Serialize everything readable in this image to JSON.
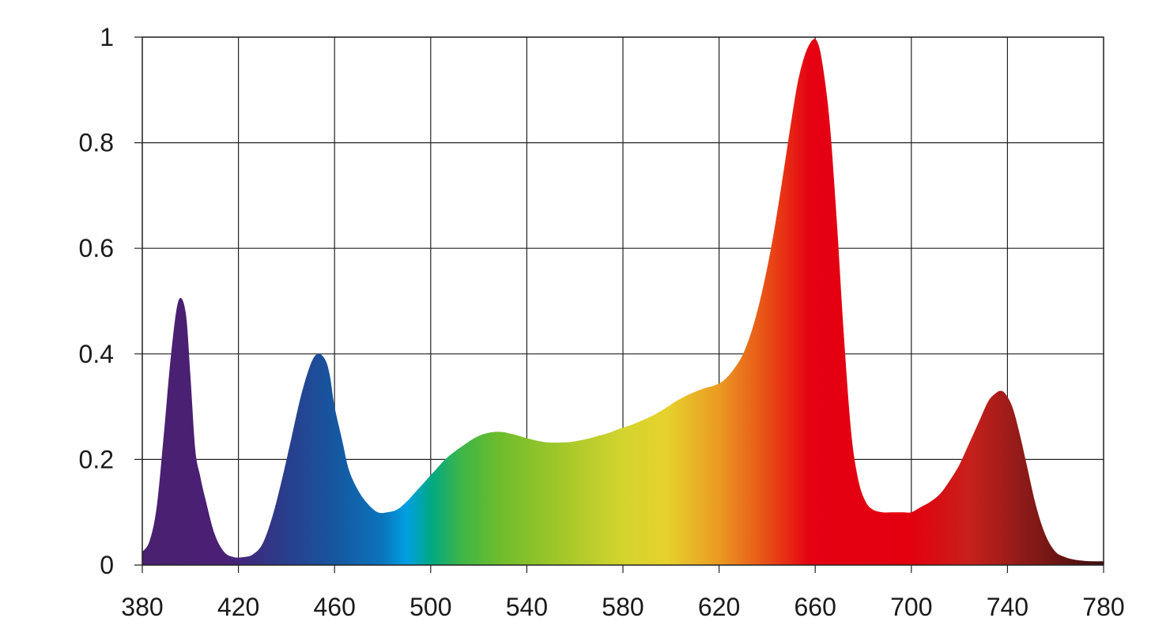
{
  "chart_data": {
    "type": "area",
    "title": "",
    "xlabel": "",
    "ylabel": "",
    "xlim": [
      380,
      780
    ],
    "ylim": [
      0,
      1
    ],
    "x_ticks": [
      380,
      420,
      460,
      500,
      540,
      580,
      620,
      660,
      700,
      740,
      780
    ],
    "y_ticks": [
      0,
      0.2,
      0.4,
      0.6,
      0.8,
      1
    ],
    "y_tick_labels": [
      "0",
      "0.2",
      "0.4",
      "0.6",
      "0.8",
      "1"
    ],
    "x_tick_labels": [
      "380",
      "420",
      "460",
      "500",
      "540",
      "580",
      "620",
      "660",
      "700",
      "740",
      "780"
    ],
    "grid": true,
    "legend": "none",
    "fill": "spectral gradient by wavelength",
    "series": [
      {
        "x": [
          380,
          383,
          386,
          389,
          392,
          395,
          398,
          400,
          402,
          404,
          406,
          410,
          414,
          418,
          422,
          426,
          430,
          434,
          438,
          442,
          446,
          450,
          453,
          456,
          458,
          460,
          463,
          466,
          470,
          474,
          478,
          482,
          486,
          490,
          494,
          498,
          502,
          506,
          510,
          514,
          518,
          522,
          526,
          530,
          534,
          538,
          542,
          546,
          550,
          554,
          558,
          562,
          566,
          570,
          574,
          578,
          582,
          586,
          590,
          594,
          598,
          602,
          606,
          610,
          614,
          618,
          622,
          626,
          630,
          634,
          638,
          642,
          646,
          650,
          653,
          656,
          659,
          661,
          663,
          666,
          669,
          672,
          675,
          678,
          681,
          684,
          688,
          692,
          696,
          700,
          704,
          708,
          712,
          716,
          720,
          724,
          728,
          732,
          735,
          737,
          739,
          742,
          745,
          748,
          752,
          756,
          760,
          764,
          768,
          772,
          776,
          780
        ],
        "y": [
          0.025,
          0.045,
          0.11,
          0.25,
          0.4,
          0.5,
          0.48,
          0.36,
          0.22,
          0.17,
          0.13,
          0.06,
          0.025,
          0.015,
          0.015,
          0.02,
          0.04,
          0.09,
          0.16,
          0.24,
          0.32,
          0.38,
          0.4,
          0.39,
          0.36,
          0.3,
          0.24,
          0.18,
          0.14,
          0.115,
          0.1,
          0.1,
          0.105,
          0.12,
          0.14,
          0.16,
          0.18,
          0.2,
          0.215,
          0.228,
          0.24,
          0.248,
          0.252,
          0.252,
          0.248,
          0.243,
          0.238,
          0.234,
          0.232,
          0.232,
          0.233,
          0.236,
          0.24,
          0.245,
          0.25,
          0.257,
          0.263,
          0.27,
          0.278,
          0.287,
          0.298,
          0.31,
          0.32,
          0.328,
          0.335,
          0.34,
          0.35,
          0.37,
          0.4,
          0.45,
          0.52,
          0.61,
          0.72,
          0.84,
          0.92,
          0.97,
          0.995,
          0.99,
          0.95,
          0.84,
          0.65,
          0.43,
          0.25,
          0.16,
          0.12,
          0.105,
          0.1,
          0.1,
          0.1,
          0.1,
          0.11,
          0.12,
          0.135,
          0.16,
          0.19,
          0.23,
          0.27,
          0.31,
          0.325,
          0.33,
          0.325,
          0.3,
          0.25,
          0.19,
          0.11,
          0.055,
          0.025,
          0.015,
          0.01,
          0.008,
          0.007,
          0.007
        ]
      }
    ]
  }
}
